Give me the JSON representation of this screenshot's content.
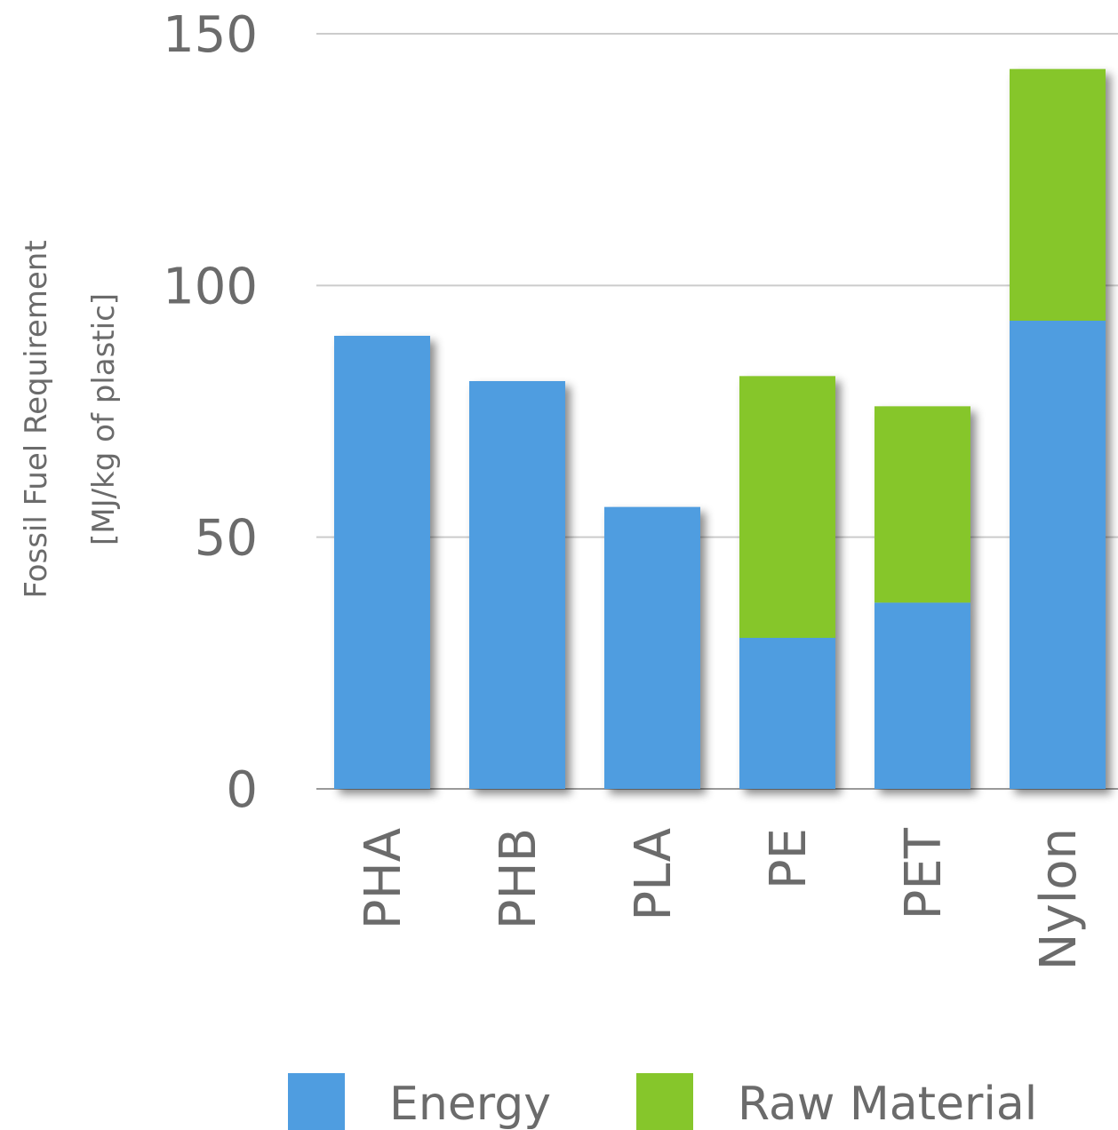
{
  "chart_data": {
    "type": "bar",
    "stacked": true,
    "categories": [
      "PHA",
      "PHB",
      "PLA",
      "PE",
      "PET",
      "Nylon"
    ],
    "series": [
      {
        "name": "Energy",
        "color": "#4f9de0",
        "values": [
          90,
          81,
          56,
          30,
          37,
          93
        ]
      },
      {
        "name": "Raw Material",
        "color": "#86c62b",
        "values": [
          0,
          0,
          0,
          52,
          39,
          50
        ]
      }
    ],
    "ylabel": [
      "Fossil Fuel Requirement",
      "[MJ/kg of plastic]"
    ],
    "ylim": [
      0,
      150
    ],
    "yticks": [
      0,
      50,
      100,
      150
    ],
    "grid": true,
    "legend": "bottom"
  }
}
